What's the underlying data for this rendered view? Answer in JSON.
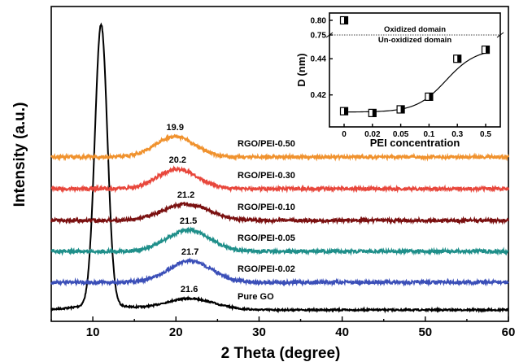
{
  "chart_data": [
    {
      "type": "line",
      "xlabel": "2 Theta (degree)",
      "ylabel": "Intensity (a.u.)",
      "xlim": [
        5,
        60
      ],
      "xticks": [
        10,
        20,
        30,
        40,
        50,
        60
      ],
      "y_ticks_shown": false,
      "series": [
        {
          "name": "Pure GO",
          "color": "#000000",
          "offset": 0,
          "peak_x": 21.6,
          "peak_label": "21.6",
          "sharp_peak_x": 11.0,
          "sharp_peak_height": 345,
          "broad_height": 14,
          "broad_width": 3.0
        },
        {
          "name": "RGO/PEI-0.02",
          "color": "#3b4fb8",
          "offset": 34,
          "peak_x": 21.7,
          "peak_label": "21.7",
          "broad_height": 26,
          "broad_width": 2.6
        },
        {
          "name": "RGO/PEI-0.05",
          "color": "#1f8f8a",
          "offset": 72,
          "peak_x": 21.5,
          "peak_label": "21.5",
          "broad_height": 26,
          "broad_width": 2.6
        },
        {
          "name": "RGO/PEI-0.10",
          "color": "#7a1010",
          "offset": 110,
          "peak_x": 21.2,
          "peak_label": "21.2",
          "broad_height": 20,
          "broad_width": 2.8
        },
        {
          "name": "RGO/PEI-0.30",
          "color": "#e8473c",
          "offset": 149,
          "peak_x": 20.2,
          "peak_label": "20.2",
          "broad_height": 24,
          "broad_width": 2.4
        },
        {
          "name": "RGO/PEI-0.50",
          "color": "#f0922e",
          "offset": 188,
          "peak_x": 19.9,
          "peak_label": "19.9",
          "broad_height": 25,
          "broad_width": 2.4
        }
      ]
    },
    {
      "type": "scatter",
      "xlabel": "PEI concentration",
      "ylabel": "D (nm)",
      "categories": [
        "0",
        "0.02",
        "0.05",
        "0.1",
        "0.3",
        "0.5"
      ],
      "values": [
        0.411,
        0.41,
        0.412,
        0.419,
        0.44,
        0.445
      ],
      "ylim": [
        0.405,
        0.45
      ],
      "yticks": [
        0.42,
        0.44
      ],
      "broken_axis_ticks": [
        "0.75",
        "0.80"
      ],
      "extra_point": {
        "category": "0",
        "value": 0.8
      },
      "domain_boundary": 0.75,
      "annotations": [
        "Oxidized domain",
        "Un-oxidized domain"
      ]
    }
  ]
}
